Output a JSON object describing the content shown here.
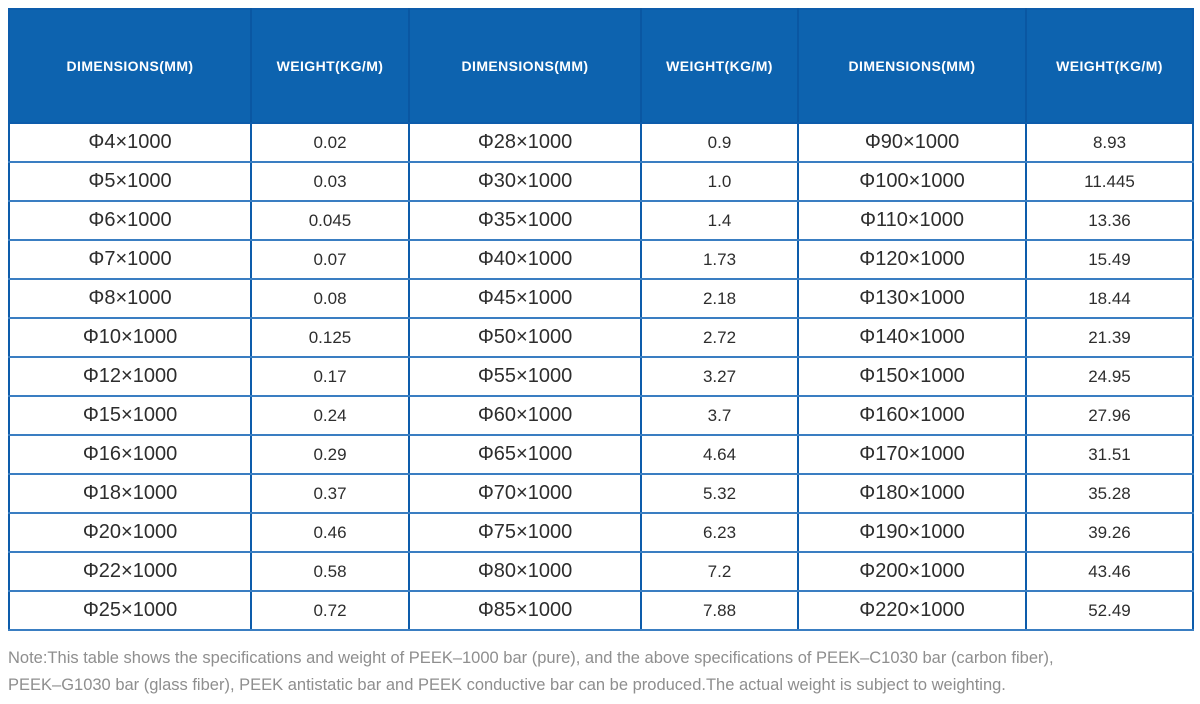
{
  "table": {
    "header_labels": [
      "DIMENSIONS(MM)",
      "WEIGHT(KG/M)",
      "DIMENSIONS(MM)",
      "WEIGHT(KG/M)",
      "DIMENSIONS(MM)",
      "WEIGHT(KG/M)"
    ],
    "rows": [
      [
        "Φ4×1000",
        "0.02",
        "Φ28×1000",
        "0.9",
        "Φ90×1000",
        "8.93"
      ],
      [
        "Φ5×1000",
        "0.03",
        "Φ30×1000",
        "1.0",
        "Φ100×1000",
        "11.445"
      ],
      [
        "Φ6×1000",
        "0.045",
        "Φ35×1000",
        "1.4",
        "Φ110×1000",
        "13.36"
      ],
      [
        "Φ7×1000",
        "0.07",
        "Φ40×1000",
        "1.73",
        "Φ120×1000",
        "15.49"
      ],
      [
        "Φ8×1000",
        "0.08",
        "Φ45×1000",
        "2.18",
        "Φ130×1000",
        "18.44"
      ],
      [
        "Φ10×1000",
        "0.125",
        "Φ50×1000",
        "2.72",
        "Φ140×1000",
        "21.39"
      ],
      [
        "Φ12×1000",
        "0.17",
        "Φ55×1000",
        "3.27",
        "Φ150×1000",
        "24.95"
      ],
      [
        "Φ15×1000",
        "0.24",
        "Φ60×1000",
        "3.7",
        "Φ160×1000",
        "27.96"
      ],
      [
        "Φ16×1000",
        "0.29",
        "Φ65×1000",
        "4.64",
        "Φ170×1000",
        "31.51"
      ],
      [
        "Φ18×1000",
        "0.37",
        "Φ70×1000",
        "5.32",
        "Φ180×1000",
        "35.28"
      ],
      [
        "Φ20×1000",
        "0.46",
        "Φ75×1000",
        "6.23",
        "Φ190×1000",
        "39.26"
      ],
      [
        "Φ22×1000",
        "0.58",
        "Φ80×1000",
        "7.2",
        "Φ200×1000",
        "43.46"
      ],
      [
        "Φ25×1000",
        "0.72",
        "Φ85×1000",
        "7.88",
        "Φ220×1000",
        "52.49"
      ]
    ]
  },
  "note": {
    "lines": [
      "Note:This table shows the specifications and weight of PEEK–1000 bar (pure), and the above specifications of PEEK–C1030 bar (carbon fiber),",
      "PEEK–G1030 bar (glass fiber), PEEK antistatic bar and PEEK conductive bar can be produced.The actual weight is subject to weighting."
    ]
  },
  "colors": {
    "header_bg": "#0d63af",
    "header_text": "#ffffff",
    "border_dark": "#0d5cab",
    "border_light": "#3a7ec2",
    "cell_text": "#2d2d2d",
    "note_text": "#8e8e8e"
  }
}
